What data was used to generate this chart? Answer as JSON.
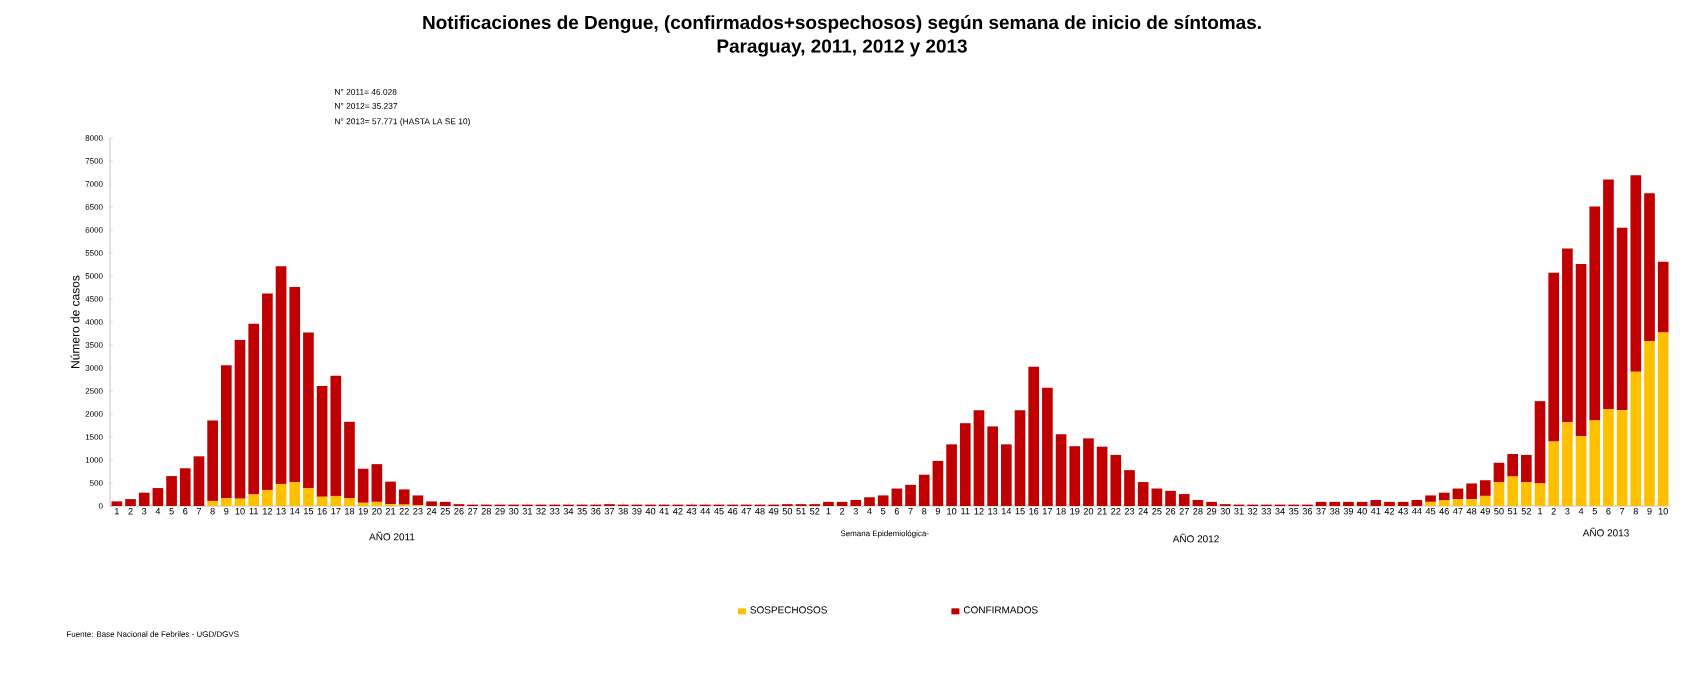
{
  "chart_data": {
    "type": "bar",
    "stacked": true,
    "title": "Notificaciones de Dengue, (confirmados+sospechosos) según semana de inicio de síntomas.",
    "subtitle": "Paraguay, 2011, 2012 y  2013",
    "ylabel": "Número de casos",
    "categories": [
      "1",
      "2",
      "3",
      "4",
      "5",
      "6",
      "7",
      "8",
      "9",
      "10",
      "11",
      "12",
      "13",
      "14",
      "15",
      "16",
      "17",
      "18",
      "19",
      "20",
      "21",
      "22",
      "23",
      "24",
      "25",
      "26",
      "27",
      "28",
      "29",
      "30",
      "31",
      "32",
      "33",
      "34",
      "35",
      "36",
      "37",
      "38",
      "39",
      "40",
      "41",
      "42",
      "43",
      "44",
      "45",
      "46",
      "47",
      "48",
      "49",
      "50",
      "51",
      "52",
      "1",
      "2",
      "3",
      "4",
      "5",
      "6",
      "7",
      "8",
      "9",
      "10",
      "11",
      "12",
      "13",
      "14",
      "15",
      "16",
      "17",
      "18",
      "19",
      "20",
      "21",
      "22",
      "23",
      "24",
      "25",
      "26",
      "27",
      "28",
      "29",
      "30",
      "31",
      "32",
      "33",
      "34",
      "35",
      "36",
      "37",
      "38",
      "39",
      "40",
      "41",
      "42",
      "43",
      "44",
      "45",
      "46",
      "47",
      "48",
      "49",
      "50",
      "51",
      "52",
      "1",
      "2",
      "3",
      "4",
      "5",
      "6",
      "7",
      "8",
      "9",
      "10"
    ],
    "series": [
      {
        "name": "SOSPECHOSOS",
        "color": "#ffc000",
        "values": [
          0,
          0,
          0,
          0,
          0,
          0,
          0,
          110,
          170,
          160,
          250,
          350,
          480,
          520,
          390,
          200,
          220,
          170,
          70,
          90,
          40,
          30,
          20,
          0,
          0,
          0,
          0,
          0,
          0,
          0,
          0,
          0,
          0,
          0,
          0,
          0,
          0,
          0,
          0,
          0,
          0,
          0,
          0,
          0,
          0,
          0,
          0,
          0,
          0,
          0,
          0,
          0,
          0,
          0,
          0,
          0,
          0,
          0,
          0,
          0,
          0,
          0,
          0,
          0,
          0,
          0,
          0,
          0,
          0,
          0,
          0,
          0,
          0,
          0,
          0,
          0,
          0,
          0,
          0,
          0,
          0,
          0,
          0,
          0,
          0,
          0,
          0,
          0,
          0,
          0,
          0,
          0,
          0,
          0,
          0,
          0,
          90,
          120,
          150,
          150,
          220,
          520,
          640,
          520,
          490,
          1400,
          1820,
          1520,
          1860,
          2110,
          2080,
          2920,
          3580,
          3770
        ]
      },
      {
        "name": "CONFIRMADOS",
        "color": "#c00000",
        "values": [
          100,
          150,
          290,
          390,
          650,
          820,
          1080,
          1750,
          2890,
          3450,
          3710,
          4270,
          4730,
          4240,
          3380,
          2410,
          2610,
          1660,
          740,
          820,
          490,
          330,
          210,
          100,
          90,
          40,
          30,
          30,
          30,
          30,
          30,
          30,
          30,
          30,
          30,
          30,
          40,
          30,
          30,
          30,
          30,
          30,
          30,
          30,
          30,
          30,
          30,
          30,
          30,
          40,
          40,
          40,
          90,
          90,
          130,
          190,
          230,
          380,
          460,
          680,
          980,
          1340,
          1800,
          2080,
          1730,
          1340,
          2080,
          3030,
          2570,
          1560,
          1300,
          1470,
          1290,
          1110,
          780,
          520,
          380,
          330,
          260,
          130,
          90,
          40,
          30,
          30,
          30,
          30,
          30,
          30,
          90,
          90,
          90,
          90,
          130,
          90,
          90,
          130,
          140,
          170,
          230,
          340,
          340,
          420,
          490,
          590,
          1790,
          3670,
          3780,
          3740,
          4650,
          4990,
          3970,
          4270,
          3220,
          1540
        ]
      }
    ],
    "ylim": [
      0,
      8000
    ],
    "yticks": [
      0,
      500,
      1000,
      1500,
      2000,
      2500,
      3000,
      3500,
      4000,
      4500,
      5000,
      5500,
      6000,
      6500,
      7000,
      7500,
      8000
    ],
    "legend": "bottom",
    "annotations": [
      "N° 2011= 46.028",
      "N° 2012= 35.237",
      "N° 2013= 57.771 (HASTA LA SE 10)",
      "AÑO 2011",
      "Semana Epidemiológica-",
      "AÑO 2012",
      "AÑO 2013",
      "Fuente: Base Nacional de Febriles - UGD/DGVS"
    ]
  }
}
